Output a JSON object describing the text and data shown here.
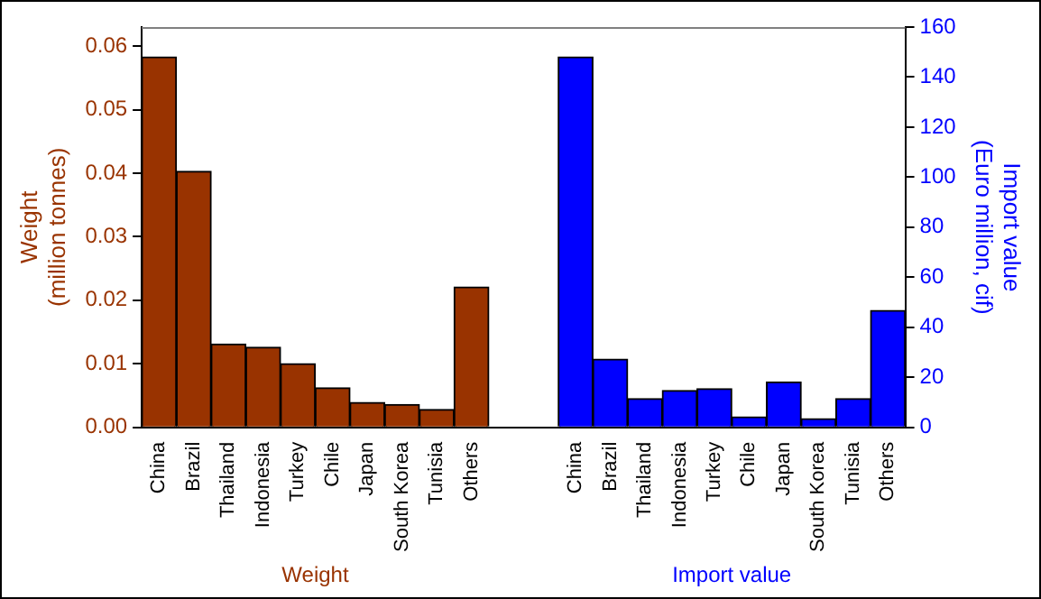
{
  "chart_data": {
    "type": "bar",
    "ylabel": "Weight\n(million tonnes)",
    "y2label": "Import value\n(Euro million, cif)",
    "categories": [
      "China",
      "Brazil",
      "Thailand",
      "Indonesia",
      "Turkey",
      "Chile",
      "Japan",
      "South Korea",
      "Tunisia",
      "Others",
      null,
      null,
      "China",
      "Brazil",
      "Thailand",
      "Indonesia",
      "Turkey",
      "Chile",
      "Japan",
      "South Korea",
      "Tunisia",
      "Others"
    ],
    "series": [
      {
        "name": "Weight",
        "color": "#993300",
        "values": [
          0.0583,
          0.0403,
          0.0131,
          0.0126,
          0.01,
          0.0062,
          0.0039,
          0.0036,
          0.0028,
          0.0221,
          null,
          null,
          null,
          null,
          null,
          null,
          null,
          null,
          null,
          null,
          null,
          null
        ]
      },
      {
        "name": "Import value",
        "color": "#0000ff",
        "axis": "y2",
        "values": [
          null,
          null,
          null,
          null,
          null,
          null,
          null,
          null,
          null,
          null,
          null,
          null,
          148,
          27.2,
          11.5,
          14.7,
          15.4,
          4.2,
          18.1,
          3.4,
          11.5,
          46.7
        ]
      }
    ],
    "ylim": [
      0,
      0.063
    ],
    "yticks": [
      {
        "value": 0,
        "label": "0.00"
      },
      {
        "value": 0.01,
        "label": "0.01"
      },
      {
        "value": 0.02,
        "label": "0.02"
      },
      {
        "value": 0.03,
        "label": "0.03"
      },
      {
        "value": 0.04,
        "label": "0.04"
      },
      {
        "value": 0.05,
        "label": "0.05"
      },
      {
        "value": 0.06,
        "label": "0.06"
      }
    ],
    "y2lim": [
      0,
      160
    ],
    "y2ticks": [
      0,
      20,
      40,
      60,
      80,
      100,
      120,
      140,
      160
    ],
    "grid": false,
    "legend": false
  }
}
